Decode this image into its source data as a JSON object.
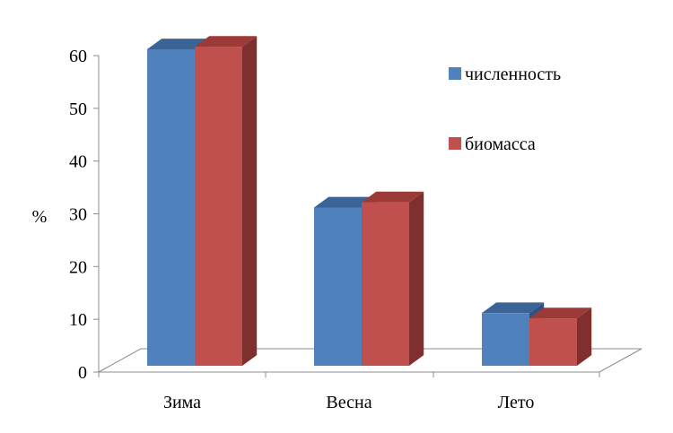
{
  "chart_data": {
    "type": "bar",
    "style": "3d-clustered-column",
    "categories": [
      "Зима",
      "Весна",
      "Лето"
    ],
    "series": [
      {
        "name": "численность",
        "values": [
          60,
          30,
          10
        ],
        "color": "#4f81bd",
        "top_color": "#3a6496",
        "side_color": "#2f5380"
      },
      {
        "name": "биомасса",
        "values": [
          60.5,
          31,
          9
        ],
        "color": "#c0504d",
        "top_color": "#9b3a37",
        "side_color": "#7f2f2d"
      }
    ],
    "title": "",
    "xlabel": "",
    "ylabel": "%",
    "ylim": [
      0,
      60
    ],
    "yticks": [
      0,
      10,
      20,
      30,
      40,
      50,
      60
    ],
    "grid": false,
    "legend": "right"
  }
}
